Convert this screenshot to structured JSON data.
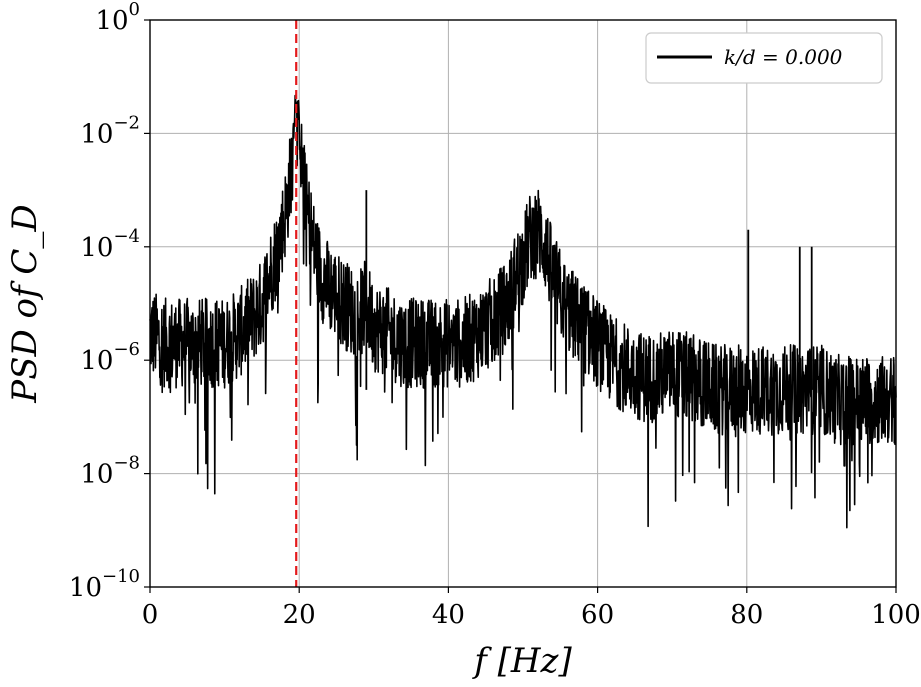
{
  "chart_data": {
    "type": "line",
    "xlabel": "f [Hz]",
    "ylabel": "PSD of C_D",
    "xlim": [
      0,
      100
    ],
    "ylim": [
      1e-10,
      1
    ],
    "y_scale": "log",
    "grid": true,
    "x_ticks": [
      {
        "value": 0,
        "label": "0"
      },
      {
        "value": 20,
        "label": "20"
      },
      {
        "value": 40,
        "label": "40"
      },
      {
        "value": 60,
        "label": "60"
      },
      {
        "value": 80,
        "label": "80"
      },
      {
        "value": 100,
        "label": "100"
      }
    ],
    "y_ticks": [
      {
        "value": 1e-10,
        "base": "10",
        "exp": "−10"
      },
      {
        "value": 1e-08,
        "base": "10",
        "exp": "−8"
      },
      {
        "value": 1e-06,
        "base": "10",
        "exp": "−6"
      },
      {
        "value": 0.0001,
        "base": "10",
        "exp": "−4"
      },
      {
        "value": 0.01,
        "base": "10",
        "exp": "−2"
      },
      {
        "value": 1,
        "base": "10",
        "exp": "0"
      }
    ],
    "legend": {
      "position": "top-right",
      "entries": [
        "k/d = 0.000"
      ]
    },
    "reference_line": {
      "x": 19.6,
      "color": "#e41a1c",
      "style": "dashed"
    },
    "series": [
      {
        "name": "k/d = 0.000",
        "color": "#000000",
        "x": [
          0,
          2,
          4,
          6,
          8,
          10,
          12,
          14,
          15,
          16,
          17,
          18,
          18.5,
          19,
          19.3,
          19.6,
          19.9,
          20.3,
          21,
          22,
          23,
          24,
          26,
          28,
          29,
          30,
          32,
          34,
          36,
          38,
          40,
          42,
          44,
          46,
          48,
          49,
          50,
          51,
          52,
          53,
          54,
          55,
          56,
          58,
          60,
          62,
          64,
          66,
          68,
          70,
          72,
          74,
          76,
          78,
          80,
          82,
          84,
          86,
          87,
          88,
          89,
          90,
          92,
          94,
          96,
          98,
          100
        ],
        "y": [
          3e-06,
          2e-06,
          2e-06,
          2e-06,
          2e-06,
          2e-06,
          3e-06,
          6e-06,
          1e-05,
          3e-05,
          8e-05,
          0.0003,
          0.0008,
          0.003,
          0.02,
          0.05,
          0.02,
          0.003,
          0.0005,
          0.0001,
          3e-05,
          2e-05,
          1e-05,
          6e-06,
          1e-05,
          4e-06,
          3e-06,
          2e-06,
          2e-06,
          2e-06,
          2e-06,
          2e-06,
          3e-06,
          5e-06,
          1e-05,
          3e-05,
          6e-05,
          0.00015,
          0.0002,
          0.0001,
          3e-05,
          1.5e-05,
          8e-06,
          4e-06,
          2e-06,
          1e-06,
          7e-07,
          5e-07,
          5e-07,
          6e-07,
          5e-07,
          4e-07,
          3e-07,
          3e-07,
          3e-07,
          3e-07,
          3e-07,
          3e-07,
          3e-07,
          3e-07,
          3e-07,
          3e-07,
          2e-07,
          2e-07,
          2e-07,
          2e-07,
          2e-07
        ]
      }
    ],
    "spikes": [
      {
        "x": 29.0,
        "y": 0.001
      },
      {
        "x": 80.2,
        "y": 0.0002
      },
      {
        "x": 87.1,
        "y": 0.0001
      },
      {
        "x": 88.7,
        "y": 0.0001
      }
    ]
  }
}
